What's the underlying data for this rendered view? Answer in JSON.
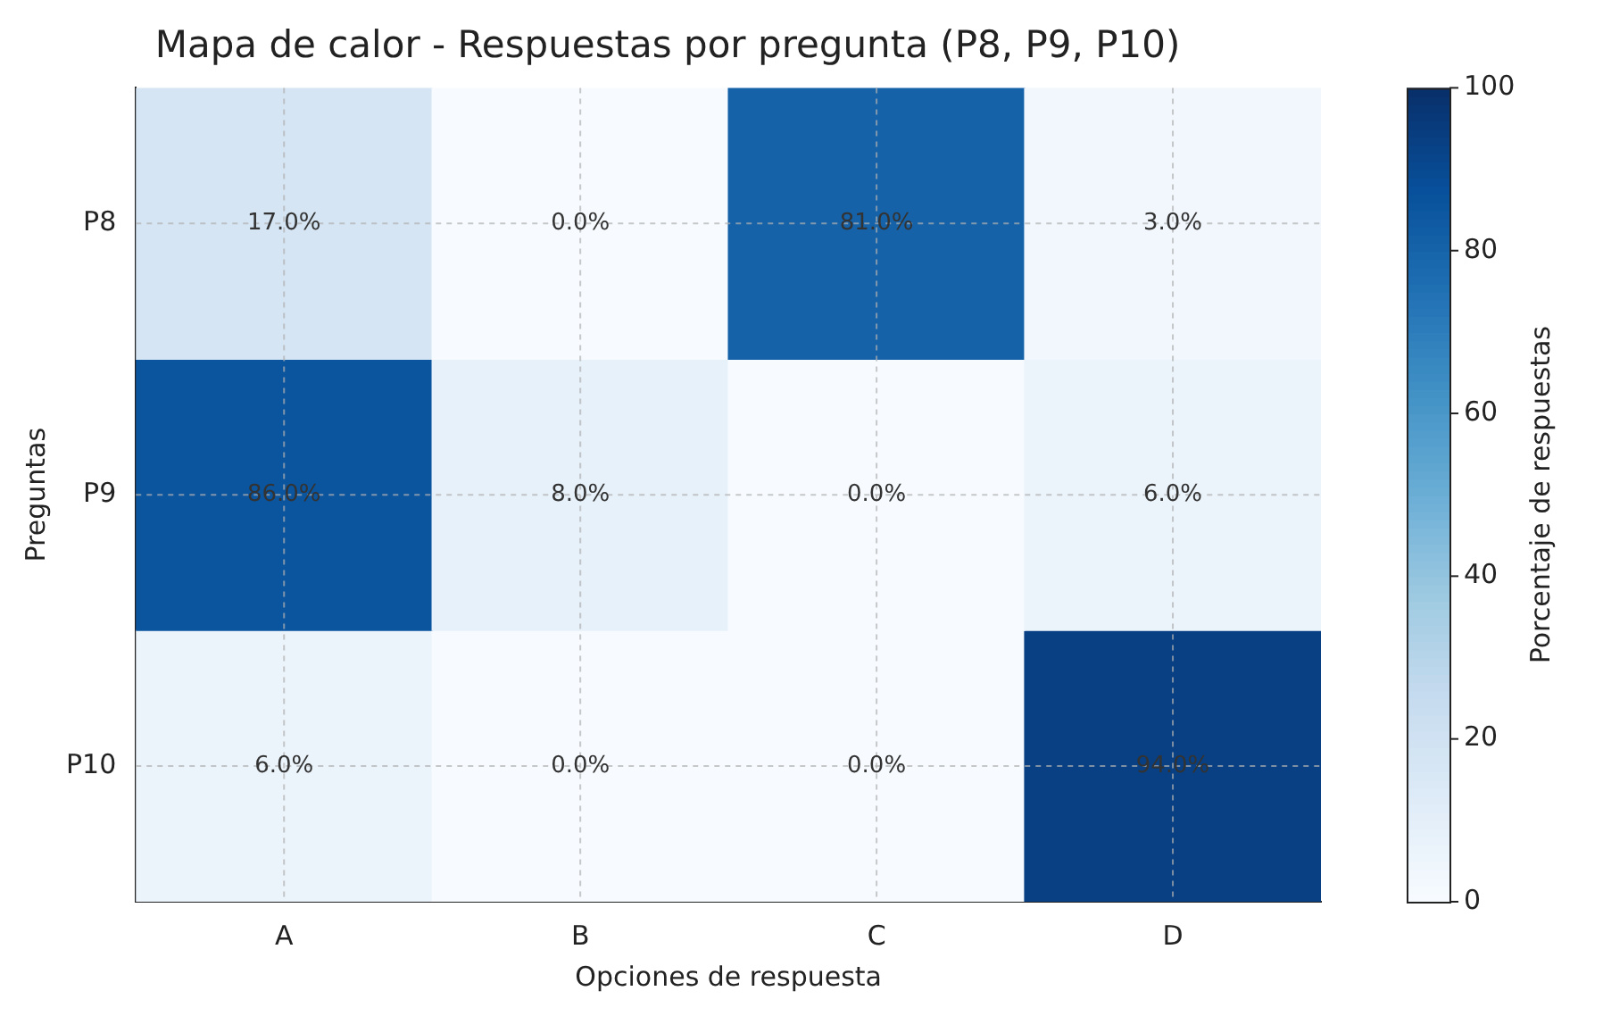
{
  "chart_data": {
    "type": "heatmap",
    "title": "Mapa de calor - Respuestas por pregunta (P8, P9, P10)",
    "xlabel": "Opciones de respuesta",
    "ylabel": "Preguntas",
    "clabel": "Porcentaje de respuestas",
    "categories": [
      "A",
      "B",
      "C",
      "D"
    ],
    "y_categories": [
      "P8",
      "P9",
      "P10"
    ],
    "cells": [
      [
        17.0,
        0.0,
        81.0,
        3.0
      ],
      [
        86.0,
        8.0,
        0.0,
        6.0
      ],
      [
        6.0,
        0.0,
        0.0,
        94.0
      ]
    ],
    "cell_labels": [
      [
        "17.0%",
        "0.0%",
        "81.0%",
        "3.0%"
      ],
      [
        "86.0%",
        "8.0%",
        "0.0%",
        "6.0%"
      ],
      [
        "6.0%",
        "0.0%",
        "0.0%",
        "94.0%"
      ]
    ],
    "clim": [
      0,
      100
    ],
    "cticks": [
      0,
      20,
      40,
      60,
      80,
      100
    ],
    "grid": true
  }
}
